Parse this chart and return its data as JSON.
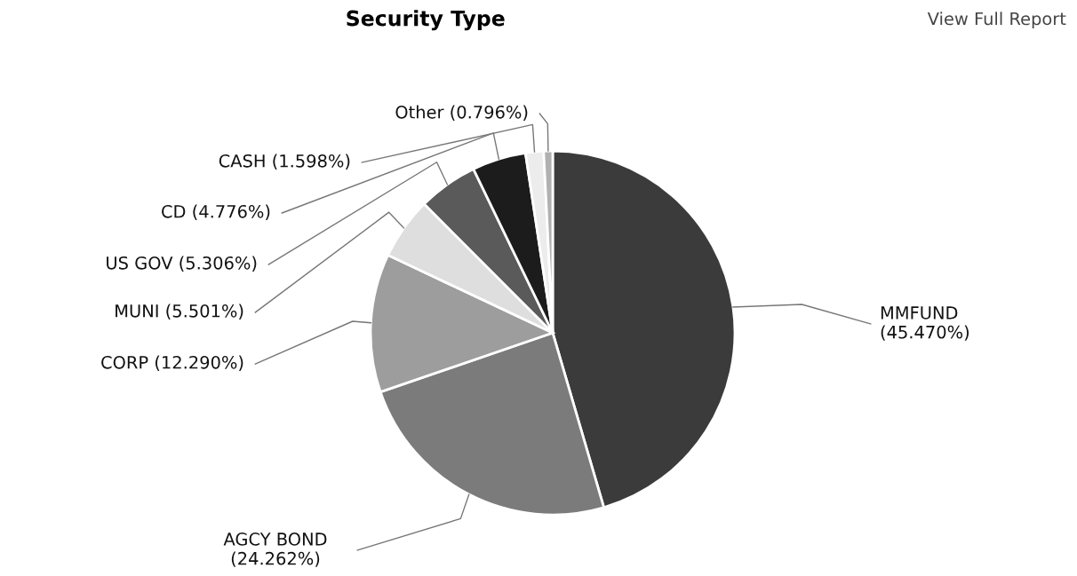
{
  "chart_data": {
    "type": "pie",
    "title": "Security Type",
    "annotations": [
      "View Full Report"
    ],
    "categories": [
      "MMFUND",
      "AGCY BOND",
      "CORP",
      "MUNI",
      "US GOV",
      "CD",
      "CASH",
      "Other"
    ],
    "values": [
      45.47,
      24.262,
      12.29,
      5.501,
      5.306,
      4.776,
      1.598,
      0.796
    ],
    "value_labels": [
      "(45.470%)",
      "(24.262%)",
      "(12.290%)",
      "(5.501%)",
      "(5.306%)",
      "(4.776%)",
      "(1.598%)",
      "(0.796%)"
    ],
    "colors": [
      "#3b3b3b",
      "#7b7b7b",
      "#9d9d9d",
      "#dedede",
      "#5a5a5a",
      "#1c1c1c",
      "#ececec",
      "#b0b0b0"
    ]
  }
}
